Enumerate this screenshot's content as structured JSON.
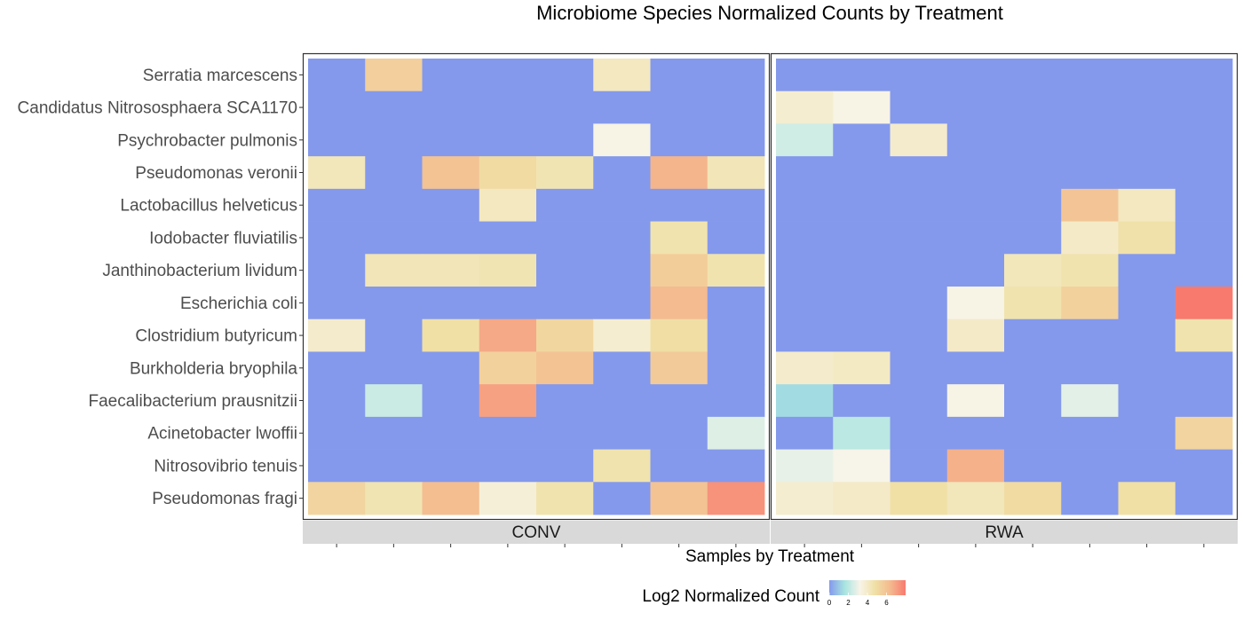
{
  "chart_data": {
    "type": "heatmap",
    "title": "Microbiome Species Normalized Counts by Treatment",
    "xlabel": "Samples by Treatment",
    "ylabel": "",
    "species": [
      "Serratia marcescens",
      "Candidatus Nitrososphaera SCA1170",
      "Psychrobacter pulmonis",
      "Pseudomonas veronii",
      "Lactobacillus helveticus",
      "Iodobacter fluviatilis",
      "Janthinobacterium lividum",
      "Escherichia coli",
      "Clostridium butyricum",
      "Burkholderia bryophila",
      "Faecalibacterium prausnitzii",
      "Acinetobacter lwoffii",
      "Nitrosovibrio tenuis",
      "Pseudomonas fragi"
    ],
    "panels": [
      {
        "name": "CONV",
        "samples": 8,
        "values": [
          [
            0,
            5.5,
            0,
            0,
            0,
            4.2,
            0,
            0
          ],
          [
            0,
            0,
            0,
            0,
            0,
            0,
            0,
            0
          ],
          [
            0,
            0,
            0,
            0,
            0,
            3.3,
            0,
            0
          ],
          [
            4.3,
            0,
            6.0,
            5.0,
            4.5,
            0,
            6.5,
            4.4
          ],
          [
            0,
            0,
            0,
            4.2,
            0,
            0,
            0,
            0
          ],
          [
            0,
            0,
            0,
            0,
            0,
            0,
            4.6,
            0
          ],
          [
            0,
            4.4,
            4.4,
            4.5,
            0,
            0,
            5.6,
            4.6
          ],
          [
            0,
            0,
            0,
            0,
            0,
            0,
            6.3,
            0
          ],
          [
            3.9,
            0,
            4.8,
            6.8,
            5.2,
            3.8,
            4.9,
            0
          ],
          [
            0,
            0,
            0,
            5.4,
            6.0,
            0,
            5.7,
            0
          ],
          [
            0,
            2.3,
            0,
            7.0,
            0,
            0,
            0,
            0
          ],
          [
            0,
            0,
            0,
            0,
            0,
            0,
            0,
            2.7
          ],
          [
            0,
            0,
            0,
            0,
            0,
            4.6,
            0,
            0
          ],
          [
            5.3,
            4.5,
            6.2,
            3.6,
            4.6,
            0,
            6.0,
            7.4
          ]
        ]
      },
      {
        "name": "RWA",
        "samples": 8,
        "values": [
          [
            0,
            0,
            0,
            0,
            0,
            0,
            0,
            0
          ],
          [
            3.8,
            3.3,
            0,
            0,
            0,
            0,
            0,
            0
          ],
          [
            2.4,
            0,
            3.9,
            0,
            0,
            0,
            0,
            0
          ],
          [
            0,
            0,
            0,
            0,
            0,
            0,
            0,
            0
          ],
          [
            0,
            0,
            0,
            0,
            0,
            5.9,
            4.2,
            0
          ],
          [
            0,
            0,
            0,
            0,
            0,
            4.0,
            4.7,
            0
          ],
          [
            0,
            0,
            0,
            0,
            4.3,
            4.6,
            0,
            0
          ],
          [
            0,
            0,
            0,
            3.3,
            4.6,
            5.4,
            0,
            8.0
          ],
          [
            0,
            0,
            0,
            4.0,
            0,
            0,
            0,
            4.6
          ],
          [
            3.9,
            4.1,
            0,
            0,
            0,
            0,
            0,
            0
          ],
          [
            1.4,
            0,
            0,
            3.3,
            0,
            2.8,
            0,
            0
          ],
          [
            0,
            2.0,
            0,
            0,
            0,
            0,
            0,
            5.3
          ],
          [
            2.9,
            3.2,
            0,
            6.6,
            0,
            0,
            0,
            0
          ],
          [
            3.8,
            4.0,
            4.8,
            4.3,
            5.0,
            0,
            4.8,
            0
          ]
        ]
      }
    ],
    "legend": {
      "title": "Log2 Normalized Count",
      "placement": "bottom",
      "ticks": [
        0,
        2,
        4,
        6
      ],
      "range": [
        0,
        8
      ],
      "colors": [
        "#8499ec",
        "#a7e4e0",
        "#f7f4e9",
        "#f0e0a6",
        "#f4b98e",
        "#f87a6f"
      ]
    },
    "grid": false
  }
}
